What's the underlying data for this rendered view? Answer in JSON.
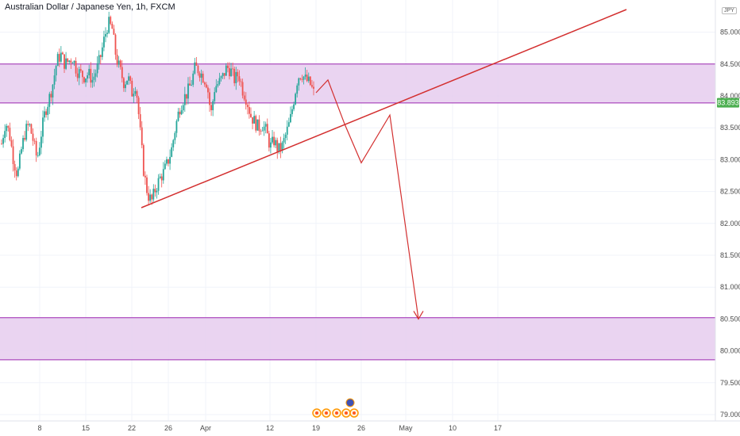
{
  "title": "Australian Dollar / Japanese Yen, 1h, FXCM",
  "currency": "JPY",
  "colors": {
    "up": "#26a69a",
    "down": "#ef5350",
    "zone_fill": "#e6cdee",
    "zone_border": "#9c27b0",
    "drawing": "#d32f2f",
    "price_tag": "#4caf50",
    "grid": "#f0f3fa"
  },
  "chart_data": {
    "type": "candlestick",
    "symbol": "Australian Dollar / Japanese Yen",
    "timeframe": "1h",
    "source": "FXCM",
    "ylim": [
      78.9,
      85.18
    ],
    "y_ticks": [
      "79.000",
      "79.500",
      "80.000",
      "80.500",
      "81.000",
      "81.500",
      "82.000",
      "82.500",
      "83.000",
      "83.500",
      "84.000",
      "84.500",
      "85.000"
    ],
    "x_ticks": [
      "8",
      "15",
      "22",
      "26",
      "Apr",
      "12",
      "19",
      "26",
      "May",
      "10",
      "17"
    ],
    "current_price": "83.893",
    "zones": [
      {
        "top": 84.5,
        "bottom": 83.89
      },
      {
        "top": 80.52,
        "bottom": 79.86
      }
    ],
    "price_path_close": [
      83.25,
      83.6,
      83.4,
      83.0,
      82.75,
      83.15,
      83.45,
      83.55,
      83.3,
      83.0,
      83.4,
      83.75,
      83.95,
      84.2,
      84.55,
      84.65,
      84.5,
      84.55,
      84.6,
      84.4,
      84.35,
      84.3,
      84.35,
      84.25,
      84.4,
      84.6,
      84.9,
      85.15,
      85.05,
      84.6,
      84.4,
      84.2,
      84.3,
      84.05,
      84.2,
      83.5,
      82.8,
      82.45,
      82.35,
      82.55,
      82.7,
      82.8,
      82.95,
      83.15,
      83.5,
      83.8,
      83.95,
      84.05,
      84.2,
      84.45,
      84.4,
      84.3,
      84.2,
      83.7,
      84.15,
      84.2,
      84.3,
      84.45,
      84.4,
      84.25,
      84.35,
      84.1,
      83.95,
      83.7,
      83.6,
      83.5,
      83.55,
      83.45,
      83.2,
      83.3,
      83.15,
      83.2,
      83.4,
      83.6,
      83.95,
      84.3,
      84.35,
      84.25,
      84.2,
      84.05
    ],
    "trendlines": [
      {
        "from": [
          0,
          82.28
        ],
        "to": [
          1,
          85.33
        ]
      }
    ],
    "projection_path": [
      84.05,
      84.25,
      83.56,
      82.95,
      83.7,
      80.5
    ]
  }
}
